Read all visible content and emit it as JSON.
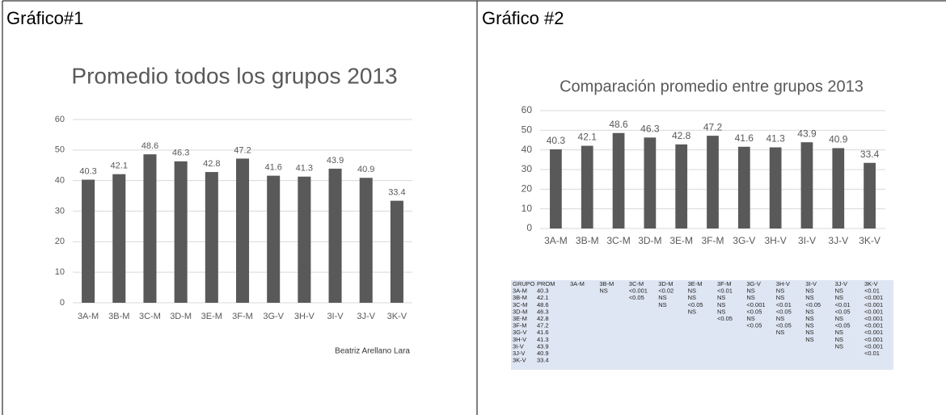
{
  "headers": [
    "Gráfico#1",
    "Gráfico #2"
  ],
  "chart_data": [
    {
      "type": "bar",
      "title": "Promedio todos los grupos 2013",
      "categories": [
        "3A-M",
        "3B-M",
        "3C-M",
        "3D-M",
        "3E-M",
        "3F-M",
        "3G-V",
        "3H-V",
        "3I-V",
        "3J-V",
        "3K-V"
      ],
      "values": [
        40.3,
        42.1,
        48.6,
        46.3,
        42.8,
        47.2,
        41.6,
        41.3,
        43.9,
        40.9,
        33.4
      ],
      "color": "#595959",
      "ylim": [
        0,
        60
      ],
      "yticks": [
        0,
        10,
        20,
        30,
        40,
        50,
        60
      ],
      "grid": true,
      "data_labels": true,
      "annotation": "Beatriz Arellano Lara"
    },
    {
      "type": "bar",
      "title": "Comparación promedio entre grupos 2013",
      "categories": [
        "3A-M",
        "3B-M",
        "3C-M",
        "3D-M",
        "3E-M",
        "3F-M",
        "3G-V",
        "3H-V",
        "3I-V",
        "3J-V",
        "3K-V"
      ],
      "values": [
        40.3,
        42.1,
        48.6,
        46.3,
        42.8,
        47.2,
        41.6,
        41.3,
        43.9,
        40.9,
        33.4
      ],
      "color": "#595959",
      "ylim": [
        0,
        60
      ],
      "yticks": [
        0,
        10,
        20,
        30,
        40,
        50,
        60
      ],
      "grid": true,
      "data_labels": true
    }
  ],
  "table": {
    "columns": [
      "GRUPO",
      "PROM",
      "3A-M",
      "3B-M",
      "3C-M",
      "3D-M",
      "3E-M",
      "3F-M",
      "3G-V",
      "3H-V",
      "3I-V",
      "3J-V",
      "3K-V"
    ],
    "rows": [
      {
        "group": "3A-M",
        "prom": 40.3,
        "cells": [
          "NS",
          "<0.001",
          "<0.02",
          "NS",
          "<0.01",
          "NS",
          "NS",
          "NS",
          "NS",
          "<0.01"
        ]
      },
      {
        "group": "3B-M",
        "prom": 42.1,
        "cells": [
          "<0.05",
          "NS",
          "NS",
          "NS",
          "NS",
          "NS",
          "NS",
          "NS",
          "<0.001"
        ]
      },
      {
        "group": "3C-M",
        "prom": 48.6,
        "cells": [
          "NS",
          "<0.05",
          "NS",
          "<0.001",
          "<0.01",
          "<0.05",
          "<0.01",
          "<0.001"
        ]
      },
      {
        "group": "3D-M",
        "prom": 46.3,
        "cells": [
          "NS",
          "NS",
          "<0.05",
          "<0.05",
          "NS",
          "<0.05",
          "<0.001"
        ]
      },
      {
        "group": "3E-M",
        "prom": 42.8,
        "cells": [
          "<0.05",
          "NS",
          "NS",
          "NS",
          "NS",
          "<0.001"
        ]
      },
      {
        "group": "3F-M",
        "prom": 47.2,
        "cells": [
          "<0.05",
          "<0.05",
          "NS",
          "<0.05",
          "<0.001"
        ]
      },
      {
        "group": "3G-V",
        "prom": 41.6,
        "cells": [
          "NS",
          "NS",
          "NS",
          "<0.001"
        ]
      },
      {
        "group": "3H-V",
        "prom": 41.3,
        "cells": [
          "NS",
          "NS",
          "<0.001"
        ]
      },
      {
        "group": "3I-V",
        "prom": 43.9,
        "cells": [
          "NS",
          "<0.001"
        ]
      },
      {
        "group": "3J-V",
        "prom": 40.9,
        "cells": [
          "<0.01"
        ]
      },
      {
        "group": "3K-V",
        "prom": 33.4,
        "cells": []
      }
    ]
  }
}
